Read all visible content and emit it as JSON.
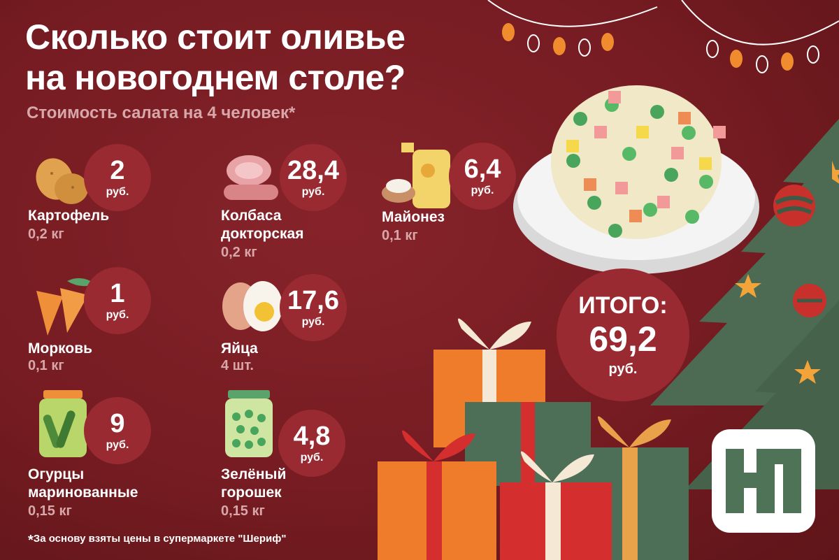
{
  "title_line1": "Сколько стоит оливье",
  "title_line2": "на новогоднем столе?",
  "subtitle": "Стоимость салата на 4 человек*",
  "items": [
    {
      "name": "Картофель",
      "qty": "0,2 кг",
      "price": "2",
      "unit": "руб.",
      "icon": "potato-icon"
    },
    {
      "name": "Колбаса\nдокторская",
      "qty": "0,2 кг",
      "price": "28,4",
      "unit": "руб.",
      "icon": "sausage-icon"
    },
    {
      "name": "Майонез",
      "qty": "0,1 кг",
      "price": "6,4",
      "unit": "руб.",
      "icon": "mayonnaise-icon"
    },
    {
      "name": "Морковь",
      "qty": "0,1 кг",
      "price": "1",
      "unit": "руб.",
      "icon": "carrot-icon"
    },
    {
      "name": "Яйца",
      "qty": "4 шт.",
      "price": "17,6",
      "unit": "руб.",
      "icon": "egg-icon"
    },
    {
      "name": "Огурцы\nмаринованные",
      "qty": "0,15 кг",
      "price": "9",
      "unit": "руб.",
      "icon": "pickles-jar-icon"
    },
    {
      "name": "Зелёный\nгорошек",
      "qty": "0,15 кг",
      "price": "4,8",
      "unit": "руб.",
      "icon": "peas-jar-icon"
    }
  ],
  "total": {
    "label": "ИТОГО:",
    "value": "69,2",
    "unit": "руб."
  },
  "footnote": "За основу взяты цены в супермаркете \"Шериф\"",
  "logo": "НП",
  "colors": {
    "background": "#7a1e24",
    "badge": "#9a2a31",
    "muted_text": "#d8a7a9",
    "tree": "#4c6b52"
  }
}
